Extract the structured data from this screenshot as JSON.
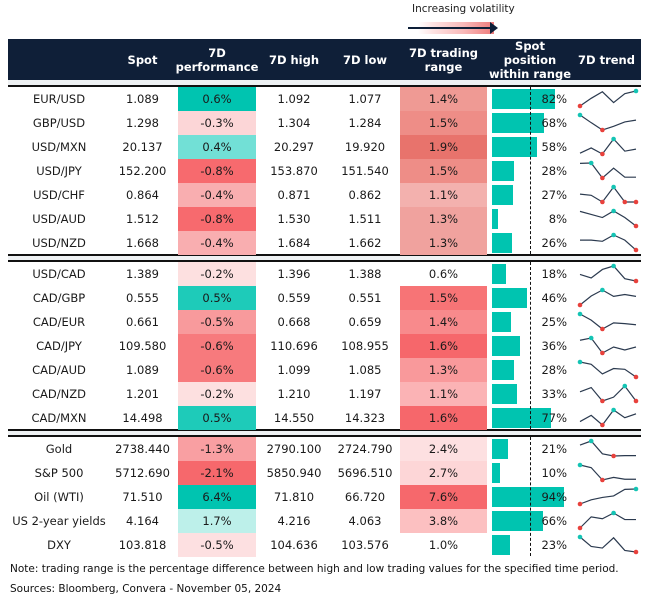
{
  "legend": {
    "label": "Increasing volatility"
  },
  "headers": {
    "spot": "Spot",
    "perf_line1": "7D",
    "perf_line2": "performance",
    "high": "7D high",
    "low": "7D low",
    "range_line1": "7D trading",
    "range_line2": "range",
    "pos_line1": "Spot position",
    "pos_line2": "within range",
    "trend": "7D trend"
  },
  "colors": {
    "header_bg": "#0f1f38",
    "bar": "#00c4b0",
    "max_marker": "#14c4b4",
    "min_marker": "#e8413c",
    "trend_line": "#2b3a4f"
  },
  "sections": [
    {
      "rows": [
        {
          "name": "EUR/USD",
          "spot": "1.089",
          "perf": "0.6%",
          "perf_color": "#00c4b0",
          "high": "1.092",
          "low": "1.077",
          "range": "1.4%",
          "range_color": "#ef9a94",
          "pos": 82,
          "pos_label": "82%",
          "trend": [
            3,
            23,
            40,
            12,
            35,
            42
          ]
        },
        {
          "name": "GBP/USD",
          "spot": "1.298",
          "perf": "-0.3%",
          "perf_color": "#fcd6d7",
          "high": "1.304",
          "low": "1.284",
          "range": "1.5%",
          "range_color": "#ee8d87",
          "pos": 68,
          "pos_label": "68%",
          "trend": [
            46,
            25,
            5,
            15,
            27,
            32
          ]
        },
        {
          "name": "USD/MXN",
          "spot": "20.137",
          "perf": "0.4%",
          "perf_color": "#72e0d6",
          "high": "20.297",
          "low": "19.920",
          "range": "1.9%",
          "range_color": "#e8736c",
          "pos": 58,
          "pos_label": "58%",
          "trend": [
            7,
            20,
            5,
            42,
            12,
            17
          ]
        },
        {
          "name": "USD/JPY",
          "spot": "152.200",
          "perf": "-0.8%",
          "perf_color": "#f76a6e",
          "high": "153.870",
          "low": "151.540",
          "range": "1.5%",
          "range_color": "#ee8d87",
          "pos": 28,
          "pos_label": "28%",
          "trend": [
            41,
            42,
            4,
            29,
            6,
            6
          ]
        },
        {
          "name": "USD/CHF",
          "spot": "0.864",
          "perf": "-0.4%",
          "perf_color": "#f9aeb0",
          "high": "0.871",
          "low": "0.862",
          "range": "1.1%",
          "range_color": "#f3b1ae",
          "pos": 27,
          "pos_label": "27%",
          "trend": [
            25,
            22,
            5,
            43,
            5,
            5
          ]
        },
        {
          "name": "USD/AUD",
          "spot": "1.512",
          "perf": "-0.8%",
          "perf_color": "#f76a6e",
          "high": "1.530",
          "low": "1.511",
          "range": "1.3%",
          "range_color": "#f0a29e",
          "pos": 8,
          "pos_label": "8%",
          "trend": [
            43,
            35,
            27,
            44,
            27,
            5
          ]
        },
        {
          "name": "USD/NZD",
          "spot": "1.668",
          "perf": "-0.4%",
          "perf_color": "#f9aeb0",
          "high": "1.684",
          "low": "1.662",
          "range": "1.3%",
          "range_color": "#f0a29e",
          "pos": 26,
          "pos_label": "26%",
          "trend": [
            30,
            30,
            27,
            43,
            30,
            5
          ]
        }
      ]
    },
    {
      "rows": [
        {
          "name": "USD/CAD",
          "spot": "1.389",
          "perf": "-0.2%",
          "perf_color": "#fde0e0",
          "high": "1.396",
          "low": "1.388",
          "range": "0.6%",
          "range_color": "#ffffff",
          "pos": 18,
          "pos_label": "18%",
          "trend": [
            23,
            14,
            36,
            45,
            12,
            6
          ]
        },
        {
          "name": "CAD/GBP",
          "spot": "0.555",
          "perf": "0.5%",
          "perf_color": "#1ecbb9",
          "high": "0.559",
          "low": "0.551",
          "range": "1.5%",
          "range_color": "#f77476",
          "pos": 46,
          "pos_label": "46%",
          "trend": [
            6,
            30,
            46,
            29,
            34,
            29
          ]
        },
        {
          "name": "CAD/EUR",
          "spot": "0.661",
          "perf": "-0.5%",
          "perf_color": "#f89a9c",
          "high": "0.668",
          "low": "0.659",
          "range": "1.4%",
          "range_color": "#f88a8c",
          "pos": 25,
          "pos_label": "25%",
          "trend": [
            45,
            29,
            6,
            22,
            20,
            17
          ]
        },
        {
          "name": "CAD/JPY",
          "spot": "109.580",
          "perf": "-0.6%",
          "perf_color": "#f77a7d",
          "high": "110.696",
          "low": "108.955",
          "range": "1.6%",
          "range_color": "#f6676b",
          "pos": 36,
          "pos_label": "36%",
          "trend": [
            40,
            46,
            6,
            22,
            14,
            22
          ]
        },
        {
          "name": "CAD/AUD",
          "spot": "1.089",
          "perf": "-0.6%",
          "perf_color": "#f77a7d",
          "high": "1.099",
          "low": "1.085",
          "range": "1.3%",
          "range_color": "#f9999b",
          "pos": 28,
          "pos_label": "28%",
          "trend": [
            45,
            39,
            14,
            28,
            26,
            6
          ]
        },
        {
          "name": "CAD/NZD",
          "spot": "1.201",
          "perf": "-0.2%",
          "perf_color": "#fde0e0",
          "high": "1.210",
          "low": "1.197",
          "range": "1.1%",
          "range_color": "#fbb3b5",
          "pos": 33,
          "pos_label": "33%",
          "trend": [
            30,
            41,
            6,
            16,
            45,
            6
          ]
        },
        {
          "name": "CAD/MXN",
          "spot": "14.498",
          "perf": "0.5%",
          "perf_color": "#1ecbb9",
          "high": "14.550",
          "low": "14.323",
          "range": "1.6%",
          "range_color": "#f6676b",
          "pos": 77,
          "pos_label": "77%",
          "trend": [
            15,
            31,
            6,
            45,
            25,
            35
          ]
        }
      ]
    },
    {
      "rows": [
        {
          "name": "Gold",
          "spot": "2738.440",
          "perf": "-1.3%",
          "perf_color": "#f99fa2",
          "high": "2790.100",
          "low": "2724.790",
          "range": "2.4%",
          "range_color": "#fde0e1",
          "pos": 21,
          "pos_label": "21%",
          "trend": [
            35,
            46,
            11,
            5,
            6,
            6
          ]
        },
        {
          "name": "S&P 500",
          "spot": "5712.690",
          "perf": "-2.1%",
          "perf_color": "#f6686c",
          "high": "5850.940",
          "low": "5696.510",
          "range": "2.7%",
          "range_color": "#fdd6d7",
          "pos": 10,
          "pos_label": "10%",
          "trend": [
            45,
            38,
            5,
            12,
            7,
            7
          ]
        },
        {
          "name": "Oil (WTI)",
          "spot": "71.510",
          "perf": "6.4%",
          "perf_color": "#00c4b0",
          "high": "71.810",
          "low": "66.720",
          "range": "7.6%",
          "range_color": "#f6686c",
          "pos": 94,
          "pos_label": "94%",
          "trend": [
            7,
            18,
            24,
            28,
            45,
            46
          ]
        },
        {
          "name": "US 2-year yields",
          "spot": "4.164",
          "perf": "1.7%",
          "perf_color": "#bdf0ea",
          "high": "4.216",
          "low": "4.063",
          "range": "3.8%",
          "range_color": "#fcc0c1",
          "pos": 66,
          "pos_label": "66%",
          "trend": [
            6,
            35,
            30,
            45,
            28,
            28
          ]
        },
        {
          "name": "DXY",
          "spot": "103.818",
          "perf": "-0.5%",
          "perf_color": "#fde0e1",
          "high": "104.636",
          "low": "103.576",
          "range": "1.0%",
          "range_color": "#ffffff",
          "pos": 23,
          "pos_label": "23%",
          "trend": [
            44,
            20,
            16,
            42,
            10,
            6
          ]
        }
      ]
    }
  ],
  "notes": {
    "note": "Note: trading range is the percentage difference between high and low trading values for the specified time period.",
    "sources": "Sources: Bloomberg, Convera - November 05, 2024"
  }
}
